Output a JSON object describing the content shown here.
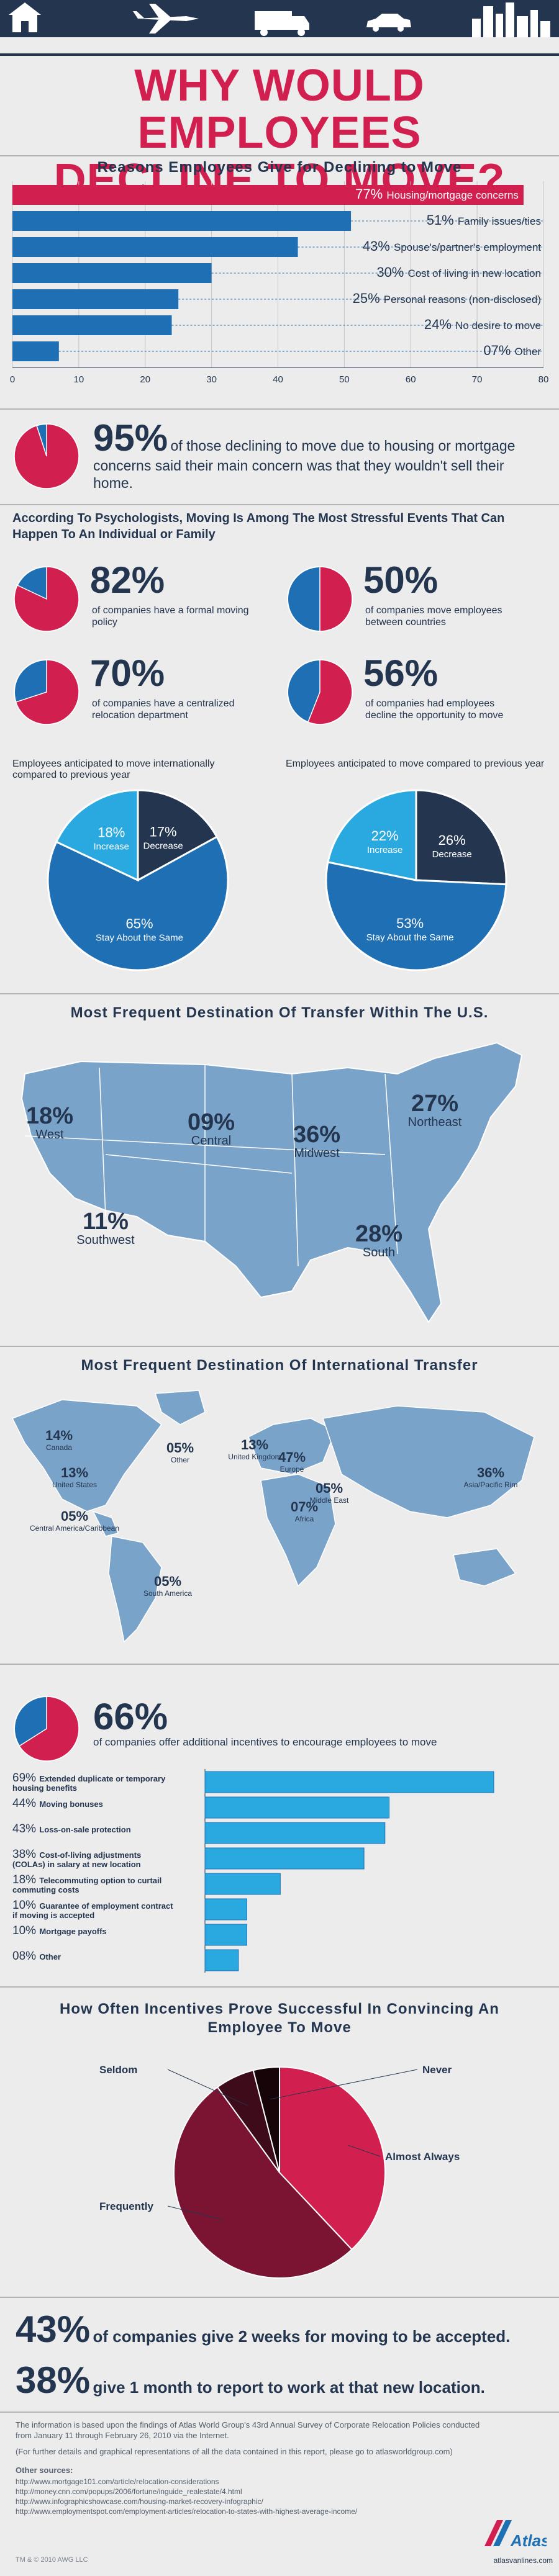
{
  "header": {
    "title_line1": "WHY WOULD EMPLOYEES",
    "title_line2": "DECLINE TO MOVE?",
    "icons": [
      "house-icon",
      "airplane-icon",
      "truck-icon",
      "car-icon",
      "city-skyline-icon"
    ]
  },
  "colors": {
    "navy": "#24364f",
    "crimson": "#d11f4f",
    "bar_blue": "#1e6fb3",
    "light_blue": "#29a9e0",
    "map_blue": "#7aa3c9",
    "maroon": "#7a1432"
  },
  "reasons": {
    "title": "Reasons Employees Give for Declining to Move",
    "chart_data": {
      "type": "bar",
      "orientation": "horizontal",
      "categories": [
        "Housing/mortgage concerns",
        "Family issues/ties",
        "Spouse's/partner's employment",
        "Cost of living in new location",
        "Personal reasons (non-disclosed)",
        "No desire to move",
        "Other"
      ],
      "values": [
        77,
        51,
        43,
        30,
        25,
        24,
        7
      ],
      "value_labels": [
        "77%",
        "51%",
        "43%",
        "30%",
        "25%",
        "24%",
        "07%"
      ],
      "xlim": [
        0,
        80
      ],
      "xticks": [
        "0",
        "10",
        "20",
        "30",
        "40",
        "50",
        "60",
        "70",
        "80"
      ]
    }
  },
  "housing": {
    "pct": "95%",
    "value": 95,
    "text": "of those declining to move due to housing or mortgage concerns said their main concern was that they wouldn't sell their home."
  },
  "stress": {
    "title": "According To Psychologists, Moving Is Among The Most Stressful Events That Can Happen To An Individual or Family",
    "stats": [
      {
        "pct": "82%",
        "value": 82,
        "text": "of companies have a formal moving policy"
      },
      {
        "pct": "50%",
        "value": 50,
        "text": "of companies move employees between countries"
      },
      {
        "pct": "70%",
        "value": 70,
        "text": "of companies have a centralized relocation department"
      },
      {
        "pct": "56%",
        "value": 56,
        "text": "of companies had employees decline the opportunity to move"
      }
    ]
  },
  "anticipated": {
    "chart_data": [
      {
        "type": "pie",
        "title": "Employees anticipated to move internationally compared to previous year",
        "slices": [
          {
            "label": "Decrease",
            "value": 17,
            "pct": "17%"
          },
          {
            "label": "Stay About the Same",
            "value": 65,
            "pct": "65%"
          },
          {
            "label": "Increase",
            "value": 18,
            "pct": "18%"
          }
        ]
      },
      {
        "type": "pie",
        "title": "Employees anticipated to move compared to previous year",
        "slices": [
          {
            "label": "Decrease",
            "value": 26,
            "pct": "26%"
          },
          {
            "label": "Stay About the Same",
            "value": 53,
            "pct": "53%"
          },
          {
            "label": "Increase",
            "value": 22,
            "pct": "22%"
          }
        ]
      }
    ]
  },
  "us_map": {
    "title": "Most Frequent Destination Of Transfer Within The U.S.",
    "regions": [
      {
        "name": "West",
        "pct": "18%"
      },
      {
        "name": "Central",
        "pct": "09%"
      },
      {
        "name": "Midwest",
        "pct": "36%"
      },
      {
        "name": "Northeast",
        "pct": "27%"
      },
      {
        "name": "Southwest",
        "pct": "11%"
      },
      {
        "name": "South",
        "pct": "28%"
      }
    ]
  },
  "world_map": {
    "title": "Most Frequent Destination Of International Transfer",
    "regions": [
      {
        "name": "Canada",
        "pct": "14%"
      },
      {
        "name": "United States",
        "pct": "13%"
      },
      {
        "name": "Central America/Caribbean",
        "pct": "05%"
      },
      {
        "name": "Other",
        "pct": "05%"
      },
      {
        "name": "South America",
        "pct": "05%"
      },
      {
        "name": "United Kingdom",
        "pct": "13%"
      },
      {
        "name": "Europe",
        "pct": "47%"
      },
      {
        "name": "Middle East",
        "pct": "05%"
      },
      {
        "name": "Asia/Pacific Rim",
        "pct": "36%"
      },
      {
        "name": "Africa",
        "pct": "07%"
      }
    ]
  },
  "incentives": {
    "pct": "66%",
    "value": 66,
    "text": "of companies offer additional incentives to encourage employees to move",
    "chart_data": {
      "type": "bar",
      "orientation": "horizontal",
      "categories": [
        "Extended duplicate or temporary housing benefits",
        "Moving bonuses",
        "Loss-on-sale protection",
        "Cost-of-living adjustments (COLAs) in salary at new location",
        "Telecommuting option to curtail commuting costs",
        "Guarantee of employment contract if moving is accepted",
        "Mortgage payoffs",
        "Other"
      ],
      "values": [
        69,
        44,
        43,
        38,
        18,
        10,
        10,
        8
      ],
      "value_labels": [
        "69%",
        "44%",
        "43%",
        "38%",
        "18%",
        "10%",
        "10%",
        "08%"
      ]
    }
  },
  "success": {
    "title": "How Often Incentives Prove Successful In Convincing An Employee To Move",
    "chart_data": {
      "type": "pie",
      "slices": [
        {
          "label": "Almost Always",
          "value": 38
        },
        {
          "label": "Frequently",
          "value": 52
        },
        {
          "label": "Seldom",
          "value": 6
        },
        {
          "label": "Never",
          "value": 4
        }
      ]
    }
  },
  "bottom_stats": [
    {
      "pct": "43%",
      "text": "of companies give 2 weeks for moving to be accepted."
    },
    {
      "pct": "38%",
      "text": "give 1 month to report to work at that new location."
    }
  ],
  "footer": {
    "info": "The information is based upon the findings of Atlas World Group's 43rd Annual Survey of Corporate Relocation Policies conducted from January 11 through February 26, 2010 via the Internet.",
    "info2": "(For further details and graphical representations of all the data contained in this report, please go to atlasworldgroup.com)",
    "sources_title": "Other sources:",
    "sources": [
      "http://www.mortgage101.com/article/relocation-considerations",
      "http://money.cnn.com/popups/2006/fortune/inguide_realestate/4.html",
      "http://www.infographicshowcase.com/housing-market-recovery-infographic/",
      "http://www.employmentspot.com/employment-articles/relocation-to-states-with-highest-average-income/"
    ],
    "copyright": "TM & © 2010 AWG LLC",
    "brand": "Atlas",
    "website": "atlasvanlines.com"
  }
}
